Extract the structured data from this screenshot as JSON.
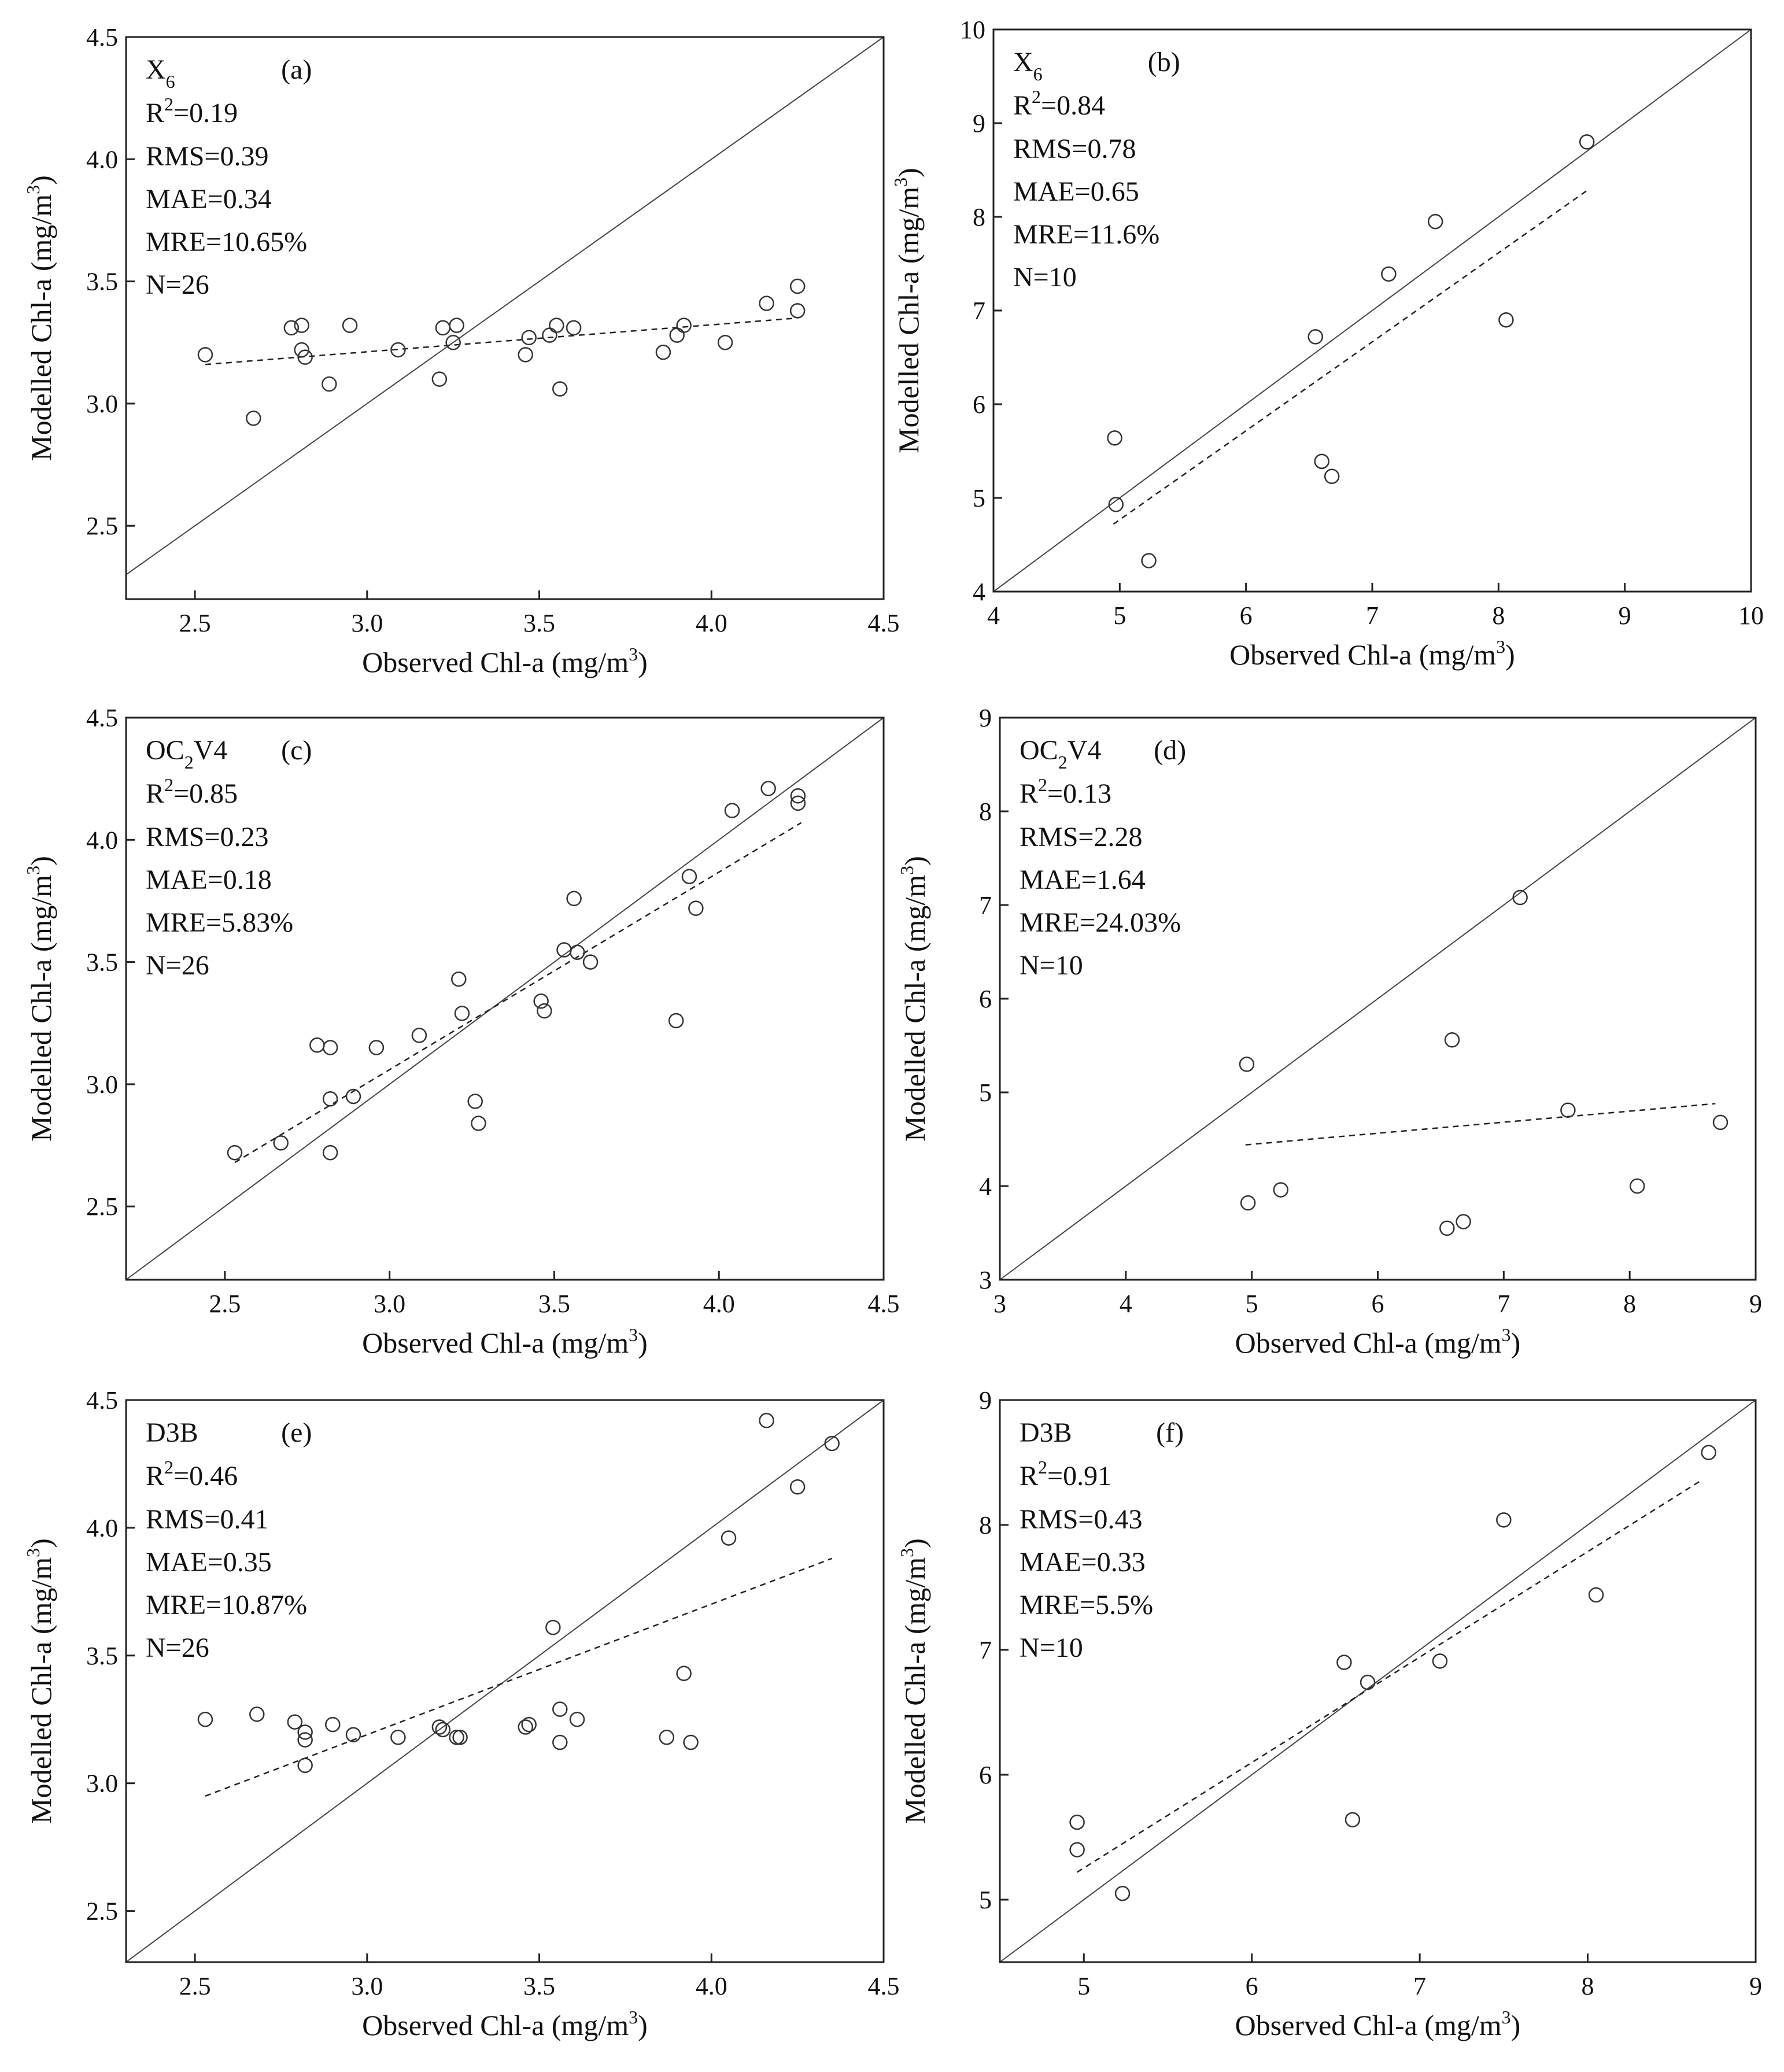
{
  "chart_data": [
    {
      "type": "scatter",
      "panel_label": "(a)",
      "method_main": "X",
      "method_sub": "6",
      "method_tail": "",
      "stats": {
        "r2": "=0.19",
        "rms": "RMS=0.39",
        "mae": "MAE=0.34",
        "mre": "MRE=10.65%",
        "n": "N=26"
      },
      "xlabel": "Observed Chl-a (mg/m",
      "ylabel": "Modelled Chl-a (mg/m",
      "xlim": [
        2.3,
        4.5
      ],
      "ylim": [
        2.2,
        4.5
      ],
      "xticks": [
        2.5,
        3.0,
        3.5,
        4.0,
        4.5
      ],
      "yticks": [
        2.5,
        3.0,
        3.5,
        4.0,
        4.5
      ],
      "xtick_labels": [
        "2.5",
        "3.0",
        "3.5",
        "4.0",
        "4.5"
      ],
      "ytick_labels": [
        "2.5",
        "3.0",
        "3.5",
        "4.0",
        "4.5"
      ],
      "fit": {
        "x": [
          2.53,
          4.25
        ],
        "y": [
          3.16,
          3.35
        ]
      },
      "points": [
        [
          2.53,
          3.2
        ],
        [
          2.67,
          2.94
        ],
        [
          2.78,
          3.31
        ],
        [
          2.81,
          3.32
        ],
        [
          2.81,
          3.22
        ],
        [
          2.82,
          3.19
        ],
        [
          2.89,
          3.08
        ],
        [
          2.95,
          3.32
        ],
        [
          3.09,
          3.22
        ],
        [
          3.21,
          3.1
        ],
        [
          3.22,
          3.31
        ],
        [
          3.25,
          3.25
        ],
        [
          3.26,
          3.32
        ],
        [
          3.46,
          3.2
        ],
        [
          3.47,
          3.27
        ],
        [
          3.53,
          3.28
        ],
        [
          3.55,
          3.32
        ],
        [
          3.56,
          3.06
        ],
        [
          3.6,
          3.31
        ],
        [
          3.86,
          3.21
        ],
        [
          3.9,
          3.28
        ],
        [
          3.92,
          3.32
        ],
        [
          4.04,
          3.25
        ],
        [
          4.16,
          3.41
        ],
        [
          4.25,
          3.48
        ],
        [
          4.25,
          3.38
        ]
      ]
    },
    {
      "type": "scatter",
      "panel_label": "(b)",
      "method_main": "X",
      "method_sub": "6",
      "method_tail": "",
      "stats": {
        "r2": "=0.84",
        "rms": "RMS=0.78",
        "mae": "MAE=0.65",
        "mre": "MRE=11.6%",
        "n": "N=10"
      },
      "xlabel": "Observed Chl-a (mg/m",
      "ylabel": "Modelled Chl-a (mg/m",
      "xlim": [
        4,
        10
      ],
      "ylim": [
        4,
        10
      ],
      "xticks": [
        4,
        5,
        6,
        7,
        8,
        9,
        10
      ],
      "yticks": [
        4,
        5,
        6,
        7,
        8,
        9,
        10
      ],
      "xtick_labels": [
        "4",
        "5",
        "6",
        "7",
        "8",
        "9",
        "10"
      ],
      "ytick_labels": [
        "4",
        "5",
        "6",
        "7",
        "8",
        "9",
        "10"
      ],
      "fit": {
        "x": [
          4.95,
          8.7
        ],
        "y": [
          4.72,
          8.28
        ]
      },
      "points": [
        [
          4.96,
          5.64
        ],
        [
          4.97,
          4.93
        ],
        [
          5.23,
          4.33
        ],
        [
          6.55,
          6.72
        ],
        [
          6.6,
          5.39
        ],
        [
          6.68,
          5.23
        ],
        [
          7.13,
          7.39
        ],
        [
          7.5,
          7.95
        ],
        [
          8.06,
          6.9
        ],
        [
          8.7,
          8.8
        ]
      ]
    },
    {
      "type": "scatter",
      "panel_label": "(c)",
      "method_main": "OC",
      "method_sub": "2",
      "method_tail": "V4",
      "stats": {
        "r2": "=0.85",
        "rms": "RMS=0.23",
        "mae": "MAE=0.18",
        "mre": "MRE=5.83%",
        "n": "N=26"
      },
      "xlabel": "Observed Chl-a (mg/m",
      "ylabel": "Modelled Chl-a (mg/m",
      "xlim": [
        2.2,
        4.5
      ],
      "ylim": [
        2.2,
        4.5
      ],
      "xticks": [
        2.5,
        3.0,
        3.5,
        4.0,
        4.5
      ],
      "yticks": [
        2.5,
        3.0,
        3.5,
        4.0,
        4.5
      ],
      "xtick_labels": [
        "2.5",
        "3.0",
        "3.5",
        "4.0",
        "4.5"
      ],
      "ytick_labels": [
        "2.5",
        "3.0",
        "3.5",
        "4.0",
        "4.5"
      ],
      "fit": {
        "x": [
          2.53,
          4.25
        ],
        "y": [
          2.68,
          4.07
        ]
      },
      "points": [
        [
          2.53,
          2.72
        ],
        [
          2.67,
          2.76
        ],
        [
          2.78,
          3.16
        ],
        [
          2.82,
          3.15
        ],
        [
          2.82,
          2.94
        ],
        [
          2.82,
          2.72
        ],
        [
          2.89,
          2.95
        ],
        [
          2.96,
          3.15
        ],
        [
          3.09,
          3.2
        ],
        [
          3.21,
          3.43
        ],
        [
          3.22,
          3.29
        ],
        [
          3.26,
          2.93
        ],
        [
          3.27,
          2.84
        ],
        [
          3.46,
          3.34
        ],
        [
          3.47,
          3.3
        ],
        [
          3.53,
          3.55
        ],
        [
          3.56,
          3.76
        ],
        [
          3.57,
          3.54
        ],
        [
          3.61,
          3.5
        ],
        [
          3.87,
          3.26
        ],
        [
          3.91,
          3.85
        ],
        [
          3.93,
          3.72
        ],
        [
          4.04,
          4.12
        ],
        [
          4.15,
          4.21
        ],
        [
          4.24,
          4.18
        ],
        [
          4.24,
          4.15
        ]
      ]
    },
    {
      "type": "scatter",
      "panel_label": "(d)",
      "method_main": "OC",
      "method_sub": "2",
      "method_tail": "V4",
      "stats": {
        "r2": "=0.13",
        "rms": "RMS=2.28",
        "mae": "MAE=1.64",
        "mre": "MRE=24.03%",
        "n": "N=10"
      },
      "xlabel": "Observed Chl-a (mg/m",
      "ylabel": "Modelled Chl-a (mg/m",
      "xlim": [
        3,
        9
      ],
      "ylim": [
        3,
        9
      ],
      "xticks": [
        3,
        4,
        5,
        6,
        7,
        8,
        9
      ],
      "yticks": [
        3,
        4,
        5,
        6,
        7,
        8,
        9
      ],
      "xtick_labels": [
        "3",
        "4",
        "5",
        "6",
        "7",
        "8",
        "9"
      ],
      "ytick_labels": [
        "3",
        "4",
        "5",
        "6",
        "7",
        "8",
        "9"
      ],
      "fit": {
        "x": [
          4.95,
          8.68
        ],
        "y": [
          4.44,
          4.88
        ]
      },
      "points": [
        [
          4.96,
          5.3
        ],
        [
          4.97,
          3.82
        ],
        [
          5.23,
          3.96
        ],
        [
          6.55,
          3.55
        ],
        [
          6.59,
          5.56
        ],
        [
          6.68,
          3.62
        ],
        [
          7.13,
          7.08
        ],
        [
          7.51,
          4.81
        ],
        [
          8.06,
          4.0
        ],
        [
          8.72,
          4.68
        ]
      ]
    },
    {
      "type": "scatter",
      "panel_label": "(e)",
      "method_main": "D3B",
      "method_sub": "",
      "method_tail": "",
      "stats": {
        "r2": "=0.46",
        "rms": "RMS=0.41",
        "mae": "MAE=0.35",
        "mre": "MRE=10.87%",
        "n": "N=26"
      },
      "xlabel": "Observed Chl-a (mg/m",
      "ylabel": "Modelled Chl-a (mg/m",
      "xlim": [
        2.3,
        4.5
      ],
      "ylim": [
        2.3,
        4.5
      ],
      "xticks": [
        2.5,
        3.0,
        3.5,
        4.0,
        4.5
      ],
      "yticks": [
        2.5,
        3.0,
        3.5,
        4.0,
        4.5
      ],
      "xtick_labels": [
        "2.5",
        "3.0",
        "3.5",
        "4.0",
        "4.5"
      ],
      "ytick_labels": [
        "2.5",
        "3.0",
        "3.5",
        "4.0",
        "4.5"
      ],
      "fit": {
        "x": [
          2.53,
          4.35
        ],
        "y": [
          2.95,
          3.88
        ]
      },
      "points": [
        [
          2.53,
          3.25
        ],
        [
          2.68,
          3.27
        ],
        [
          2.79,
          3.24
        ],
        [
          2.82,
          3.2
        ],
        [
          2.82,
          3.17
        ],
        [
          2.82,
          3.07
        ],
        [
          2.9,
          3.23
        ],
        [
          2.96,
          3.19
        ],
        [
          3.09,
          3.18
        ],
        [
          3.21,
          3.22
        ],
        [
          3.22,
          3.21
        ],
        [
          3.26,
          3.18
        ],
        [
          3.27,
          3.18
        ],
        [
          3.46,
          3.22
        ],
        [
          3.47,
          3.23
        ],
        [
          3.54,
          3.61
        ],
        [
          3.56,
          3.29
        ],
        [
          3.56,
          3.16
        ],
        [
          3.61,
          3.25
        ],
        [
          3.87,
          3.18
        ],
        [
          3.92,
          3.43
        ],
        [
          3.94,
          3.16
        ],
        [
          4.05,
          3.96
        ],
        [
          4.16,
          4.42
        ],
        [
          4.25,
          4.16
        ],
        [
          4.35,
          4.33
        ]
      ]
    },
    {
      "type": "scatter",
      "panel_label": "(f)",
      "method_main": "D3B",
      "method_sub": "",
      "method_tail": "",
      "stats": {
        "r2": "=0.91",
        "rms": "RMS=0.43",
        "mae": "MAE=0.33",
        "mre": "MRE=5.5%",
        "n": "N=10"
      },
      "xlabel": "Observed Chl-a (mg/m",
      "ylabel": "Modelled Chl-a (mg/m",
      "xlim": [
        4.5,
        9
      ],
      "ylim": [
        4.5,
        9
      ],
      "xticks": [
        5,
        6,
        7,
        8,
        9
      ],
      "yticks": [
        5,
        6,
        7,
        8,
        9
      ],
      "xtick_labels": [
        "5",
        "6",
        "7",
        "8",
        "9"
      ],
      "ytick_labels": [
        "5",
        "6",
        "7",
        "8",
        "9"
      ],
      "fit": {
        "x": [
          4.96,
          8.68
        ],
        "y": [
          5.22,
          8.36
        ]
      },
      "points": [
        [
          4.96,
          5.62
        ],
        [
          4.96,
          5.4
        ],
        [
          5.23,
          5.05
        ],
        [
          6.55,
          6.9
        ],
        [
          6.6,
          5.64
        ],
        [
          6.69,
          6.74
        ],
        [
          7.12,
          6.91
        ],
        [
          7.5,
          8.04
        ],
        [
          8.05,
          7.44
        ],
        [
          8.72,
          8.58
        ]
      ]
    }
  ],
  "unit_superscript": "3",
  "r2_prefix": "R",
  "r2_superscript": "2",
  "label_close": ")"
}
